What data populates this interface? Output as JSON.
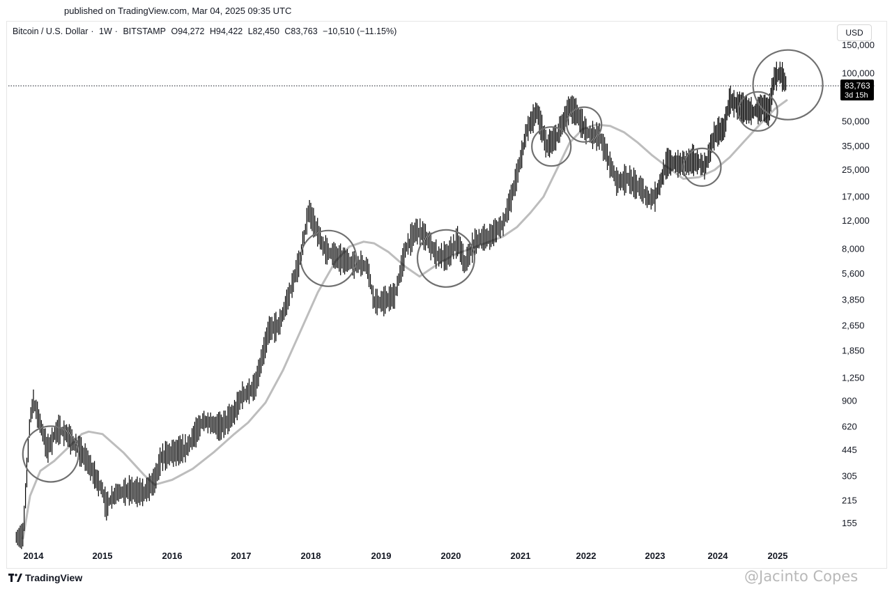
{
  "header": {
    "published": "published on TradingView.com, Mar 04, 2025 09:35 UTC"
  },
  "symbol": {
    "name": "Bitcoin / U.S. Dollar",
    "interval": "1W",
    "exchange": "BITSTAMP",
    "open": "O94,272",
    "high": "H94,422",
    "low": "L82,450",
    "close": "C83,763",
    "change": "−10,510 (−11.15%)"
  },
  "currency_button": "USD",
  "price_tag": {
    "value": "83,763",
    "countdown": "3d 15h"
  },
  "footer": {
    "logo_text": "TradingView",
    "watermark": "@Jacinto Copes"
  },
  "colors": {
    "candles": "#000000",
    "moving_average": "#bdbdbd",
    "circles": "#707070",
    "price_line": "#131722",
    "price_tag_bg": "#000000"
  },
  "chart_data": {
    "type": "line",
    "title": "Bitcoin / U.S. Dollar · 1W · BITSTAMP",
    "scale": "log",
    "ylim": [
      120,
      160000
    ],
    "x_labels": [
      "2014",
      "2015",
      "2016",
      "2017",
      "2018",
      "2019",
      "2020",
      "2021",
      "2022",
      "2023",
      "2024",
      "2025"
    ],
    "y_ticks": [
      155,
      215,
      305,
      445,
      620,
      900,
      1250,
      1850,
      2650,
      3850,
      5600,
      8000,
      12000,
      17000,
      25000,
      35000,
      50000,
      100000,
      150000
    ],
    "y_tick_labels": [
      "155",
      "215",
      "305",
      "445",
      "620",
      "900",
      "1,250",
      "1,850",
      "2,650",
      "3,850",
      "5,600",
      "8,000",
      "12,000",
      "17,000",
      "25,000",
      "35,000",
      "50,000",
      "100,000",
      "150,000"
    ],
    "last_price": 83763,
    "series": [
      {
        "name": "",
        "kind": "price",
        "x": [
          2013.75,
          2013.85,
          2013.95,
          2014.0,
          2014.1,
          2014.2,
          2014.35,
          2014.5,
          2014.6,
          2014.75,
          2014.9,
          2015.0,
          2015.05,
          2015.2,
          2015.4,
          2015.6,
          2015.75,
          2015.85,
          2016.0,
          2016.2,
          2016.45,
          2016.5,
          2016.7,
          2016.9,
          2017.0,
          2017.2,
          2017.4,
          2017.55,
          2017.7,
          2017.85,
          2017.97,
          2018.1,
          2018.2,
          2018.4,
          2018.6,
          2018.8,
          2018.9,
          2019.0,
          2019.2,
          2019.35,
          2019.5,
          2019.6,
          2019.8,
          2019.95,
          2020.1,
          2020.2,
          2020.35,
          2020.55,
          2020.75,
          2020.9,
          2021.0,
          2021.1,
          2021.25,
          2021.4,
          2021.55,
          2021.75,
          2021.85,
          2022.0,
          2022.2,
          2022.45,
          2022.6,
          2022.8,
          2022.9,
          2023.0,
          2023.2,
          2023.4,
          2023.6,
          2023.8,
          2023.95,
          2024.1,
          2024.2,
          2024.4,
          2024.6,
          2024.75,
          2024.85,
          2024.95,
          2025.05,
          2025.15
        ],
        "y": [
          125,
          130,
          700,
          900,
          650,
          450,
          600,
          550,
          480,
          400,
          300,
          250,
          200,
          240,
          250,
          240,
          290,
          400,
          430,
          450,
          680,
          660,
          620,
          750,
          960,
          1100,
          2500,
          2700,
          4300,
          7000,
          14000,
          10000,
          8000,
          7000,
          6500,
          6300,
          3800,
          3700,
          4100,
          8000,
          10500,
          10000,
          7300,
          7200,
          9000,
          6400,
          9000,
          9500,
          11500,
          19000,
          29000,
          45000,
          58000,
          35000,
          40000,
          62000,
          57000,
          43000,
          40000,
          21000,
          22000,
          19000,
          16500,
          17000,
          28000,
          27000,
          29000,
          26000,
          42000,
          45000,
          68000,
          61000,
          58000,
          62000,
          58000,
          95000,
          100000,
          84000
        ]
      },
      {
        "name": "",
        "kind": "moving_average",
        "x": [
          2013.85,
          2013.95,
          2014.1,
          2014.3,
          2014.5,
          2014.7,
          2014.8,
          2015.0,
          2015.3,
          2015.6,
          2015.75,
          2016.0,
          2016.3,
          2016.6,
          2016.9,
          2017.1,
          2017.35,
          2017.6,
          2017.85,
          2018.1,
          2018.35,
          2018.55,
          2018.75,
          2018.9,
          2019.1,
          2019.35,
          2019.55,
          2019.8,
          2020.05,
          2020.3,
          2020.55,
          2020.75,
          2020.95,
          2021.15,
          2021.35,
          2021.55,
          2021.75,
          2021.95,
          2022.15,
          2022.35,
          2022.55,
          2022.75,
          2022.95,
          2023.2,
          2023.45,
          2023.7,
          2023.95,
          2024.2,
          2024.45,
          2024.7,
          2024.95,
          2025.15
        ],
        "y": [
          125,
          230,
          330,
          380,
          460,
          560,
          580,
          560,
          430,
          310,
          270,
          290,
          340,
          430,
          560,
          660,
          880,
          1400,
          2450,
          4300,
          6700,
          8300,
          8900,
          8700,
          7700,
          6200,
          5400,
          6400,
          7400,
          8100,
          8900,
          9600,
          11000,
          13500,
          17000,
          25000,
          37000,
          45000,
          48000,
          47000,
          43000,
          37000,
          31000,
          26000,
          22000,
          22500,
          25000,
          30000,
          38000,
          48000,
          60000,
          68000
        ]
      }
    ],
    "annotations": [
      {
        "type": "circle",
        "x": 2014.25,
        "y": 420
      },
      {
        "type": "circle",
        "x": 2018.25,
        "y": 7000
      },
      {
        "type": "circle",
        "x": 2019.93,
        "y": 7000
      },
      {
        "type": "circle",
        "x": 2021.47,
        "y": 35000
      },
      {
        "type": "circle",
        "x": 2021.97,
        "y": 48000
      },
      {
        "type": "circle",
        "x": 2023.75,
        "y": 26000
      },
      {
        "type": "circle",
        "x": 2024.67,
        "y": 58000
      },
      {
        "type": "circle",
        "x": 2025.17,
        "y": 85000
      }
    ]
  }
}
